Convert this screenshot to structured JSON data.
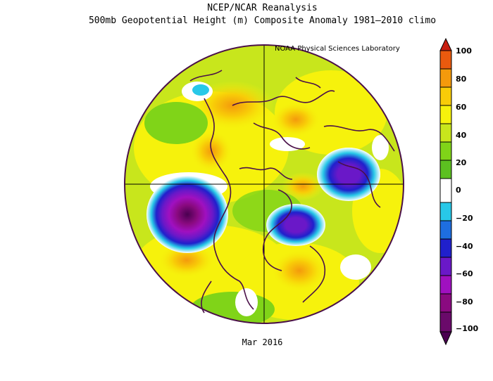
{
  "figure": {
    "title_line1": "NCEP/NCAR Reanalysis",
    "title_line2": "500mb Geopotential Height (m) Composite Anomaly 1981–2010 climo",
    "credit": "NOAA Physical Sciences Laboratory",
    "period": "Mar 2016"
  },
  "colorbar": {
    "labels": [
      "100",
      "80",
      "60",
      "40",
      "20",
      "0",
      "−20",
      "−40",
      "−60",
      "−80",
      "−100"
    ],
    "colors": [
      "#c81e10",
      "#ea5a0e",
      "#f49a0c",
      "#f8cc08",
      "#f6f20c",
      "#c8e61c",
      "#80d418",
      "#ffffff",
      "#28c8e8",
      "#1e6ee0",
      "#2020cc",
      "#6a18c8",
      "#a010c0",
      "#8a0a80",
      "#4a0050"
    ]
  },
  "map": {
    "projection": "north polar stereographic",
    "background_color": "#c8e61c"
  }
}
